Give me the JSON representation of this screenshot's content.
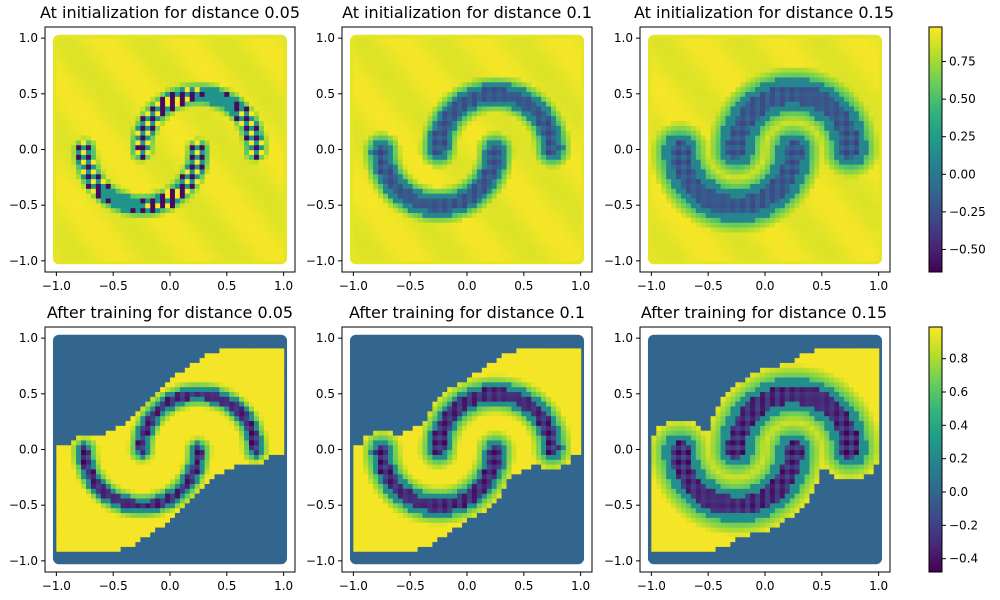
{
  "chart_data": [
    {
      "type": "heatmap",
      "title": "At initialization for distance 0.05",
      "distance": 0.05,
      "stage": "init",
      "xlim": [
        -1.1,
        1.1
      ],
      "ylim": [
        -1.1,
        1.1
      ],
      "xticks": [
        "−1.0",
        "−0.5",
        "0.0",
        "0.5",
        "1.0"
      ],
      "yticks": [
        "−1.0",
        "−0.5",
        "0.0",
        "0.5",
        "1.0"
      ],
      "grid": false
    },
    {
      "type": "heatmap",
      "title": "At initialization for distance 0.1",
      "distance": 0.1,
      "stage": "init",
      "xlim": [
        -1.1,
        1.1
      ],
      "ylim": [
        -1.1,
        1.1
      ],
      "xticks": [
        "−1.0",
        "−0.5",
        "0.0",
        "0.5",
        "1.0"
      ],
      "yticks": [
        "−1.0",
        "−0.5",
        "0.0",
        "0.5",
        "1.0"
      ],
      "grid": false
    },
    {
      "type": "heatmap",
      "title": "At initialization for distance 0.15",
      "distance": 0.15,
      "stage": "init",
      "xlim": [
        -1.1,
        1.1
      ],
      "ylim": [
        -1.1,
        1.1
      ],
      "xticks": [
        "−1.0",
        "−0.5",
        "0.0",
        "0.5",
        "1.0"
      ],
      "yticks": [
        "−1.0",
        "−0.5",
        "0.0",
        "0.5",
        "1.0"
      ],
      "grid": false
    },
    {
      "type": "heatmap",
      "title": "After training for distance 0.05",
      "distance": 0.05,
      "stage": "trained",
      "xlim": [
        -1.1,
        1.1
      ],
      "ylim": [
        -1.1,
        1.1
      ],
      "xticks": [
        "−1.0",
        "−0.5",
        "0.0",
        "0.5",
        "1.0"
      ],
      "yticks": [
        "−1.0",
        "−0.5",
        "0.0",
        "0.5",
        "1.0"
      ],
      "grid": false
    },
    {
      "type": "heatmap",
      "title": "After training for distance 0.1",
      "distance": 0.1,
      "stage": "trained",
      "xlim": [
        -1.1,
        1.1
      ],
      "ylim": [
        -1.1,
        1.1
      ],
      "xticks": [
        "−1.0",
        "−0.5",
        "0.0",
        "0.5",
        "1.0"
      ],
      "yticks": [
        "−1.0",
        "−0.5",
        "0.0",
        "0.5",
        "1.0"
      ],
      "grid": false
    },
    {
      "type": "heatmap",
      "title": "After training for distance 0.15",
      "distance": 0.15,
      "stage": "trained",
      "xlim": [
        -1.1,
        1.1
      ],
      "ylim": [
        -1.1,
        1.1
      ],
      "xticks": [
        "−1.0",
        "−0.5",
        "0.0",
        "0.5",
        "1.0"
      ],
      "yticks": [
        "−1.0",
        "−0.5",
        "0.0",
        "0.5",
        "1.0"
      ],
      "grid": false
    }
  ],
  "colorbars": [
    {
      "colormap": "viridis",
      "range": [
        -0.65,
        0.98
      ],
      "tick_values": [
        0.75,
        0.5,
        0.25,
        0.0,
        -0.25,
        -0.5
      ],
      "tick_labels": [
        "0.75",
        "0.50",
        "0.25",
        "0.00",
        "−0.25",
        "−0.50"
      ]
    },
    {
      "colormap": "viridis",
      "range": [
        -0.48,
        0.99
      ],
      "tick_values": [
        0.8,
        0.6,
        0.4,
        0.2,
        0.0,
        -0.2,
        -0.4
      ],
      "tick_labels": [
        "0.8",
        "0.6",
        "0.4",
        "0.2",
        "0.0",
        "−0.2",
        "−0.4"
      ]
    }
  ],
  "colors": {
    "viridis_stops": [
      "#440154",
      "#482878",
      "#3e4989",
      "#31688e",
      "#26828e",
      "#1f9e89",
      "#35b779",
      "#6ece58",
      "#b5de2b",
      "#fde725"
    ]
  }
}
